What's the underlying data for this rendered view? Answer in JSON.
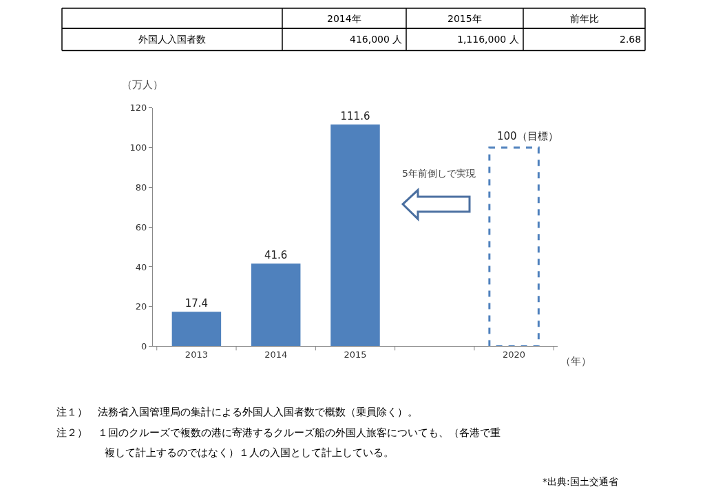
{
  "chart_data": {
    "type": "bar",
    "categories": [
      "2013",
      "2014",
      "2015",
      null,
      "2020"
    ],
    "series": [
      {
        "color": "#4f81bd",
        "values": [
          17.4,
          41.6,
          111.6,
          null,
          null
        ],
        "value_labels": [
          "17.4",
          "41.6",
          "111.6",
          null,
          null
        ]
      },
      {
        "color": "#4f81bd",
        "line_style": "dashed",
        "values": [
          null,
          null,
          null,
          null,
          100
        ],
        "value_labels": [
          null,
          null,
          null,
          null,
          "100（目標）"
        ]
      }
    ],
    "ylabel": "（万人）",
    "xlabel": "（年）",
    "ylim": [
      0,
      120
    ],
    "yticks": [
      0,
      20,
      40,
      60,
      80,
      100,
      120
    ],
    "annotations": [
      "2014年",
      "2015年",
      "前年比",
      "外国人入国者数",
      "416,000 人",
      "1,116,000 人",
      "2.68",
      "5年前倒しで実現",
      "注１）　法務省入国管理局の集計による外国人入国者数で概数（乗員除く）。",
      "注２）　１回のクルーズで複数の港に寄港するクルーズ船の外国人旅客についても、（各港で重複して計上するのではなく）１人の入国として計上している。",
      "*出典:国土交通省"
    ]
  }
}
